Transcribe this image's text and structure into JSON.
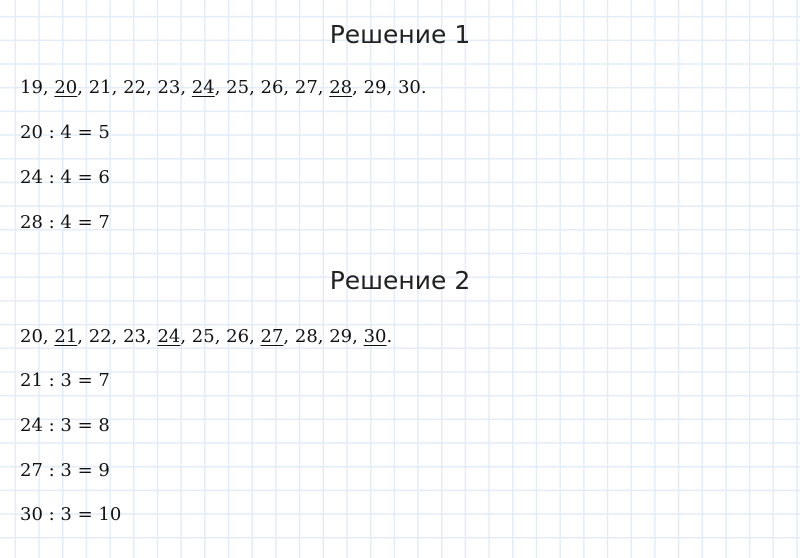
{
  "solutions": [
    {
      "title": "Решение 1",
      "sequence": [
        {
          "n": "19",
          "u": false
        },
        {
          "n": "20",
          "u": true
        },
        {
          "n": "21",
          "u": false
        },
        {
          "n": "22",
          "u": false
        },
        {
          "n": "23",
          "u": false
        },
        {
          "n": "24",
          "u": true
        },
        {
          "n": "25",
          "u": false
        },
        {
          "n": "26",
          "u": false
        },
        {
          "n": "27",
          "u": false
        },
        {
          "n": "28",
          "u": true
        },
        {
          "n": "29",
          "u": false
        },
        {
          "n": "30",
          "u": false
        }
      ],
      "equations": [
        "20 : 4 = 5",
        "24 : 4 = 6",
        "28 : 4 = 7"
      ]
    },
    {
      "title": "Решение 2",
      "sequence": [
        {
          "n": "20",
          "u": false
        },
        {
          "n": "21",
          "u": true
        },
        {
          "n": "22",
          "u": false
        },
        {
          "n": "23",
          "u": false
        },
        {
          "n": "24",
          "u": true
        },
        {
          "n": "25",
          "u": false
        },
        {
          "n": "26",
          "u": false
        },
        {
          "n": "27",
          "u": true
        },
        {
          "n": "28",
          "u": false
        },
        {
          "n": "29",
          "u": false
        },
        {
          "n": "30",
          "u": true
        }
      ],
      "equations": [
        "21 : 3 = 7",
        "24 : 3 = 8",
        "27 : 3 = 9",
        "30 : 3 = 10"
      ]
    }
  ]
}
